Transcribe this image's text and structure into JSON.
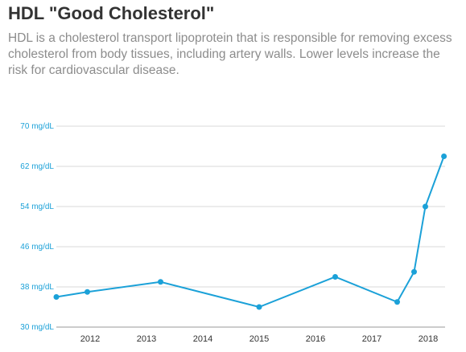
{
  "header": {
    "title": "HDL \"Good Cholesterol\"",
    "subtitle": "HDL is a cholesterol transport lipoprotein that is responsible for removing excess cholesterol from body tissues, including artery walls. Lower levels increase the risk for cardiovascular disease."
  },
  "chart_data": {
    "type": "line",
    "title": "HDL \"Good Cholesterol\"",
    "xlabel": "",
    "ylabel": "",
    "x_tick_labels": [
      "2012",
      "2013",
      "2014",
      "2015",
      "2016",
      "2017",
      "2018"
    ],
    "y_tick_labels": [
      "30 mg/dL",
      "38 mg/dL",
      "46 mg/dL",
      "54 mg/dL",
      "62 mg/dL",
      "70 mg/dL"
    ],
    "y_ticks": [
      30,
      38,
      46,
      54,
      62,
      70
    ],
    "xlim": [
      2011.4,
      2018.3
    ],
    "ylim": [
      30,
      70
    ],
    "grid": true,
    "legend": "none",
    "color": "#1ba1d8",
    "series": [
      {
        "points": [
          {
            "x": 2011.4,
            "y": 36
          },
          {
            "x": 2011.95,
            "y": 37
          },
          {
            "x": 2013.25,
            "y": 39
          },
          {
            "x": 2015.0,
            "y": 34
          },
          {
            "x": 2016.35,
            "y": 40
          },
          {
            "x": 2017.45,
            "y": 35
          },
          {
            "x": 2017.75,
            "y": 41
          },
          {
            "x": 2017.95,
            "y": 54
          },
          {
            "x": 2018.28,
            "y": 64
          }
        ]
      }
    ]
  }
}
